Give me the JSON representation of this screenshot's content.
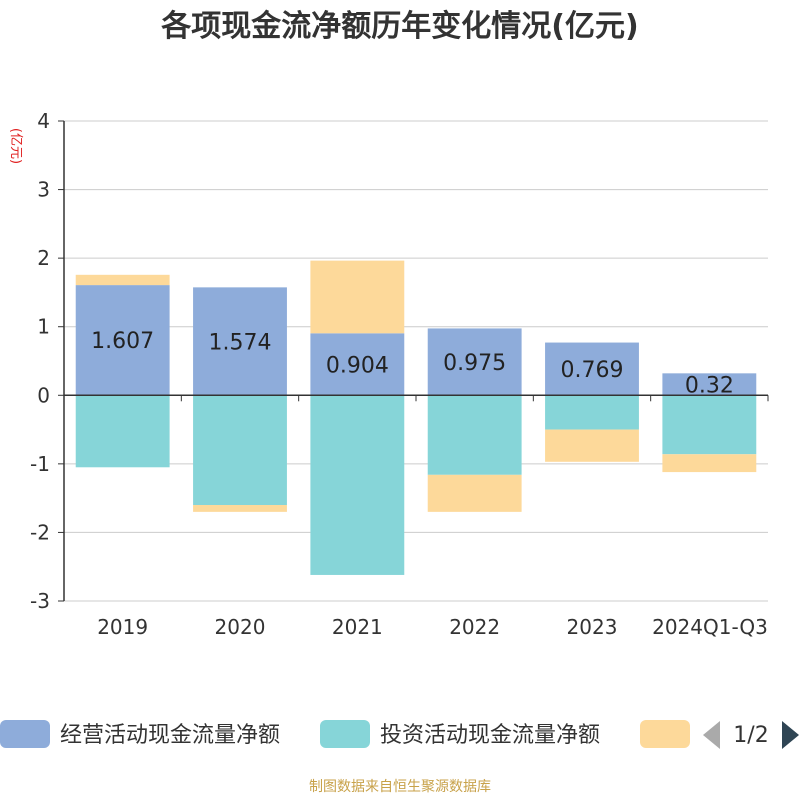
{
  "chart_data": {
    "type": "bar",
    "stacked": true,
    "title": "各项现金流净额历年变化情况(亿元)",
    "ylabel": "(亿元)",
    "ylim": [
      -3,
      4
    ],
    "yticks": [
      -3,
      -2,
      -1,
      0,
      1,
      2,
      3,
      4
    ],
    "grid": true,
    "categories": [
      "2019",
      "2020",
      "2021",
      "2022",
      "2023",
      "2024Q1-Q3"
    ],
    "series": [
      {
        "name": "经营活动现金流量净额",
        "color": "#8eacda",
        "values": [
          1.607,
          1.574,
          0.904,
          0.975,
          0.769,
          0.32
        ],
        "labels": [
          "1.607",
          "1.574",
          "0.904",
          "0.975",
          "0.769",
          "0.32"
        ]
      },
      {
        "name": "投资活动现金流量净额",
        "color": "#86d5d8",
        "values": [
          -1.05,
          -1.6,
          -2.62,
          -1.16,
          -0.5,
          -0.86
        ]
      },
      {
        "name": "",
        "color": "#fdd99a",
        "values": [
          0.15,
          -0.1,
          1.06,
          -0.54,
          -0.47,
          -0.26
        ]
      }
    ],
    "legend": {
      "position": "bottom",
      "page": "1/2"
    }
  },
  "source": "制图数据来自恒生聚源数据库"
}
